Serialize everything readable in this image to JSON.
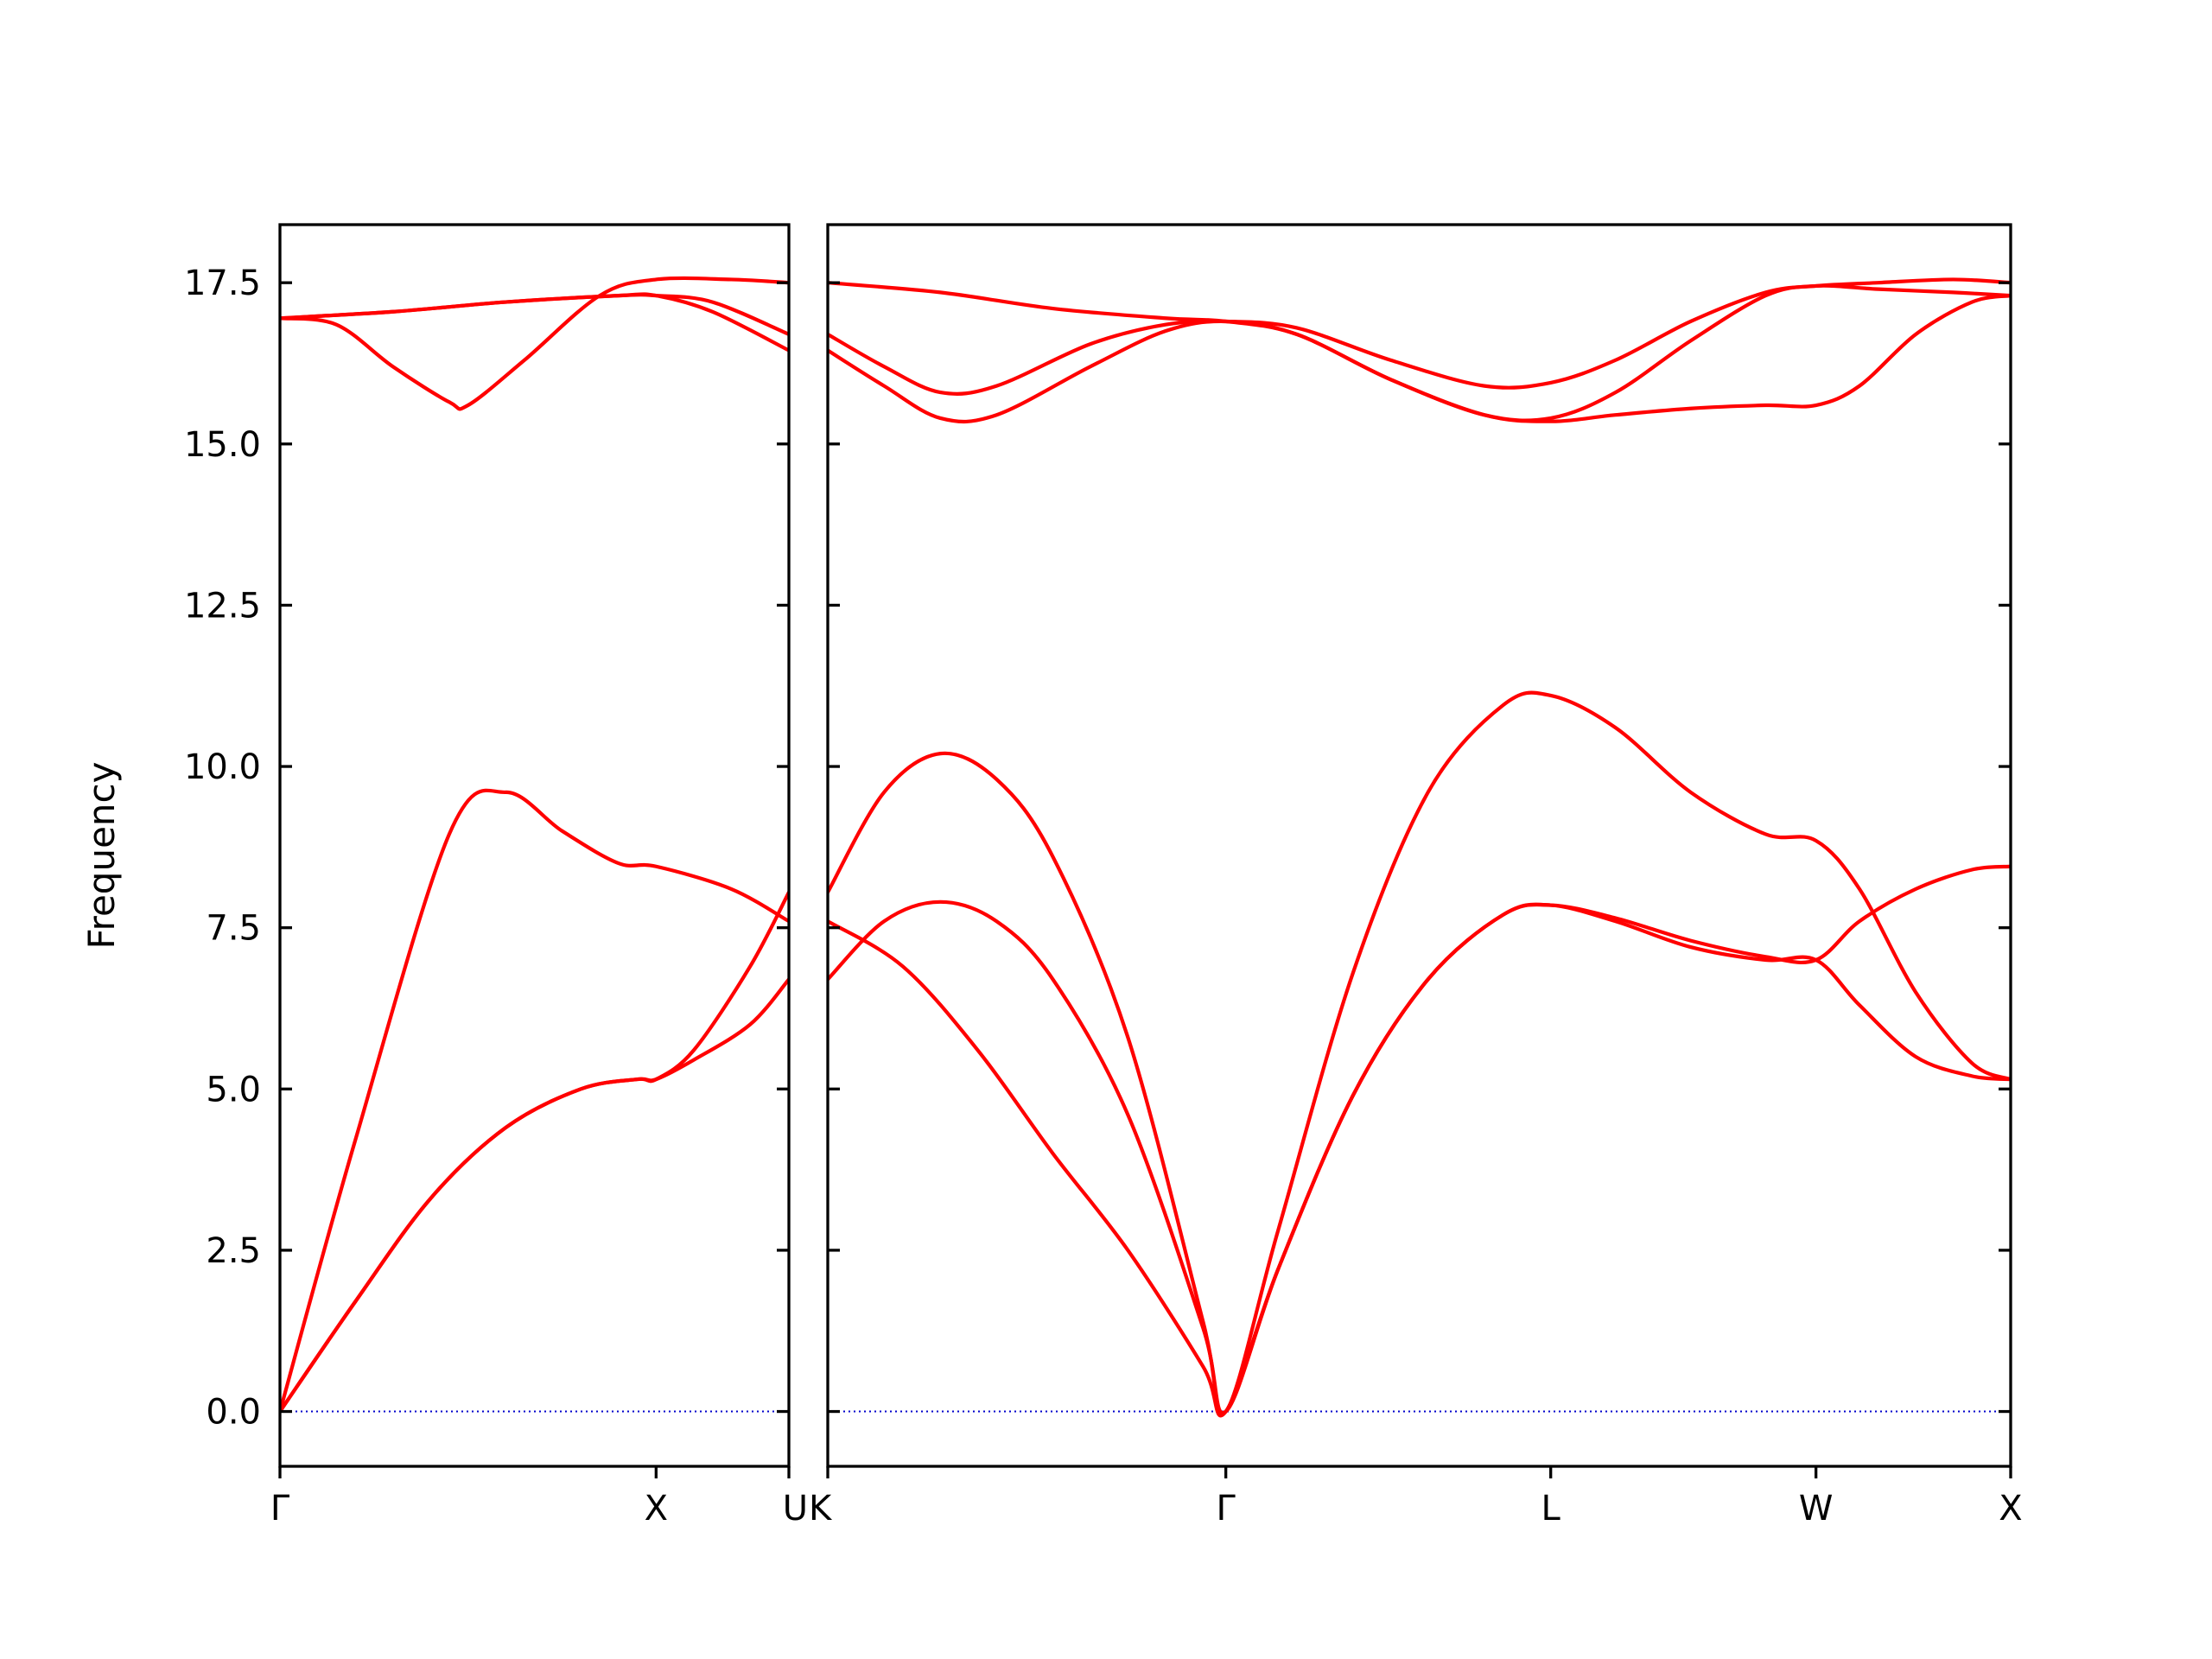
{
  "chart_data": {
    "type": "line",
    "ylabel": "Frequency",
    "ylim": [
      -0.85,
      18.4
    ],
    "yticks": [
      "0.0",
      "2.5",
      "5.0",
      "7.5",
      "10.0",
      "12.5",
      "15.0",
      "17.5"
    ],
    "colors": {
      "bands": "#ff0000",
      "zero_line": "#0000cc",
      "axes": "#000000"
    },
    "panels": [
      {
        "segment": "Γ–X–U",
        "xlim": [
          0,
          1.353
        ],
        "xticks": [
          {
            "x": 0,
            "label": "Γ"
          },
          {
            "x": 1.0,
            "label": "X"
          },
          {
            "x": 1.353,
            "label": "U"
          }
        ],
        "series": [
          {
            "points": [
              [
                0,
                0
              ],
              [
                0.2,
                4.2
              ],
              [
                0.45,
                8.95
              ],
              [
                0.6,
                9.6
              ],
              [
                0.75,
                9.0
              ],
              [
                0.9,
                8.5
              ],
              [
                1.0,
                8.45
              ],
              [
                1.2,
                8.1
              ],
              [
                1.353,
                7.6
              ]
            ]
          },
          {
            "points": [
              [
                0,
                0
              ],
              [
                0.2,
                1.7
              ],
              [
                0.4,
                3.3
              ],
              [
                0.6,
                4.4
              ],
              [
                0.8,
                5.0
              ],
              [
                0.95,
                5.15
              ],
              [
                1.0,
                5.15
              ],
              [
                1.1,
                5.6
              ],
              [
                1.25,
                6.9
              ],
              [
                1.353,
                8.05
              ]
            ]
          },
          {
            "points": [
              [
                0,
                0
              ],
              [
                0.2,
                1.7
              ],
              [
                0.4,
                3.3
              ],
              [
                0.6,
                4.4
              ],
              [
                0.8,
                5.0
              ],
              [
                0.95,
                5.15
              ],
              [
                1.0,
                5.15
              ],
              [
                1.1,
                5.45
              ],
              [
                1.25,
                6.0
              ],
              [
                1.353,
                6.7
              ]
            ]
          },
          {
            "points": [
              [
                0,
                16.95
              ],
              [
                0.15,
                16.85
              ],
              [
                0.3,
                16.2
              ],
              [
                0.45,
                15.65
              ],
              [
                0.5,
                15.6
              ],
              [
                0.65,
                16.3
              ],
              [
                0.85,
                17.3
              ],
              [
                1.0,
                17.55
              ],
              [
                1.2,
                17.55
              ],
              [
                1.353,
                17.5
              ]
            ]
          },
          {
            "points": [
              [
                0,
                16.95
              ],
              [
                0.3,
                17.05
              ],
              [
                0.6,
                17.2
              ],
              [
                0.9,
                17.3
              ],
              [
                1.0,
                17.3
              ],
              [
                1.15,
                17.2
              ],
              [
                1.353,
                16.7
              ]
            ]
          },
          {
            "points": [
              [
                0,
                16.95
              ],
              [
                0.3,
                17.05
              ],
              [
                0.6,
                17.2
              ],
              [
                0.9,
                17.3
              ],
              [
                1.0,
                17.3
              ],
              [
                1.15,
                17.05
              ],
              [
                1.353,
                16.45
              ]
            ]
          }
        ],
        "zero_line": [
          [
            0,
            0
          ],
          [
            1.353,
            0
          ]
        ]
      },
      {
        "segment": "K–Γ–L–W–X",
        "xlim": [
          0,
          3.153
        ],
        "xticks": [
          {
            "x": 0,
            "label": "K"
          },
          {
            "x": 1.061,
            "label": "Γ"
          },
          {
            "x": 1.927,
            "label": "L"
          },
          {
            "x": 2.634,
            "label": "W"
          },
          {
            "x": 3.153,
            "label": "X"
          }
        ],
        "series": [
          {
            "points": [
              [
                0,
                8.05
              ],
              [
                0.15,
                9.6
              ],
              [
                0.3,
                10.2
              ],
              [
                0.45,
                9.8
              ],
              [
                0.6,
                8.6
              ],
              [
                0.8,
                5.8
              ],
              [
                1.0,
                1.4
              ],
              [
                1.061,
                0
              ],
              [
                1.2,
                2.8
              ],
              [
                1.4,
                6.8
              ],
              [
                1.6,
                9.6
              ],
              [
                1.8,
                10.95
              ],
              [
                1.927,
                11.1
              ],
              [
                2.1,
                10.6
              ],
              [
                2.3,
                9.6
              ],
              [
                2.5,
                8.95
              ],
              [
                2.634,
                8.85
              ],
              [
                2.75,
                8.1
              ],
              [
                2.9,
                6.5
              ],
              [
                3.05,
                5.4
              ],
              [
                3.153,
                5.15
              ]
            ]
          },
          {
            "points": [
              [
                0,
                6.7
              ],
              [
                0.15,
                7.6
              ],
              [
                0.3,
                7.9
              ],
              [
                0.45,
                7.6
              ],
              [
                0.6,
                6.7
              ],
              [
                0.8,
                4.6
              ],
              [
                1.0,
                1.3
              ],
              [
                1.061,
                0
              ],
              [
                1.2,
                2.2
              ],
              [
                1.4,
                4.9
              ],
              [
                1.6,
                6.7
              ],
              [
                1.8,
                7.7
              ],
              [
                1.927,
                7.85
              ],
              [
                2.1,
                7.65
              ],
              [
                2.3,
                7.3
              ],
              [
                2.5,
                7.05
              ],
              [
                2.634,
                7.0
              ],
              [
                2.75,
                7.6
              ],
              [
                2.9,
                8.1
              ],
              [
                3.05,
                8.4
              ],
              [
                3.153,
                8.45
              ]
            ]
          },
          {
            "points": [
              [
                0,
                7.6
              ],
              [
                0.2,
                6.9
              ],
              [
                0.4,
                5.6
              ],
              [
                0.6,
                4.0
              ],
              [
                0.8,
                2.5
              ],
              [
                1.0,
                0.7
              ],
              [
                1.061,
                0
              ],
              [
                1.2,
                2.2
              ],
              [
                1.4,
                4.9
              ],
              [
                1.6,
                6.7
              ],
              [
                1.8,
                7.7
              ],
              [
                1.927,
                7.85
              ],
              [
                2.1,
                7.6
              ],
              [
                2.3,
                7.2
              ],
              [
                2.5,
                7.0
              ],
              [
                2.634,
                7.0
              ],
              [
                2.75,
                6.3
              ],
              [
                2.9,
                5.5
              ],
              [
                3.05,
                5.2
              ],
              [
                3.153,
                5.15
              ]
            ]
          },
          {
            "points": [
              [
                0,
                16.7
              ],
              [
                0.15,
                16.2
              ],
              [
                0.3,
                15.8
              ],
              [
                0.45,
                15.9
              ],
              [
                0.7,
                16.55
              ],
              [
                0.9,
                16.85
              ],
              [
                1.061,
                16.9
              ],
              [
                1.25,
                16.8
              ],
              [
                1.5,
                16.3
              ],
              [
                1.75,
                15.9
              ],
              [
                1.927,
                15.95
              ],
              [
                2.1,
                16.3
              ],
              [
                2.3,
                16.9
              ],
              [
                2.5,
                17.35
              ],
              [
                2.634,
                17.45
              ],
              [
                2.8,
                17.5
              ],
              [
                3.0,
                17.55
              ],
              [
                3.153,
                17.5
              ]
            ]
          },
          {
            "points": [
              [
                0,
                16.45
              ],
              [
                0.15,
                15.9
              ],
              [
                0.3,
                15.4
              ],
              [
                0.45,
                15.45
              ],
              [
                0.7,
                16.2
              ],
              [
                0.9,
                16.75
              ],
              [
                1.061,
                16.9
              ],
              [
                1.25,
                16.7
              ],
              [
                1.5,
                16.0
              ],
              [
                1.75,
                15.45
              ],
              [
                1.927,
                15.4
              ],
              [
                2.1,
                15.8
              ],
              [
                2.3,
                16.6
              ],
              [
                2.5,
                17.3
              ],
              [
                2.634,
                17.45
              ],
              [
                2.8,
                17.4
              ],
              [
                3.0,
                17.35
              ],
              [
                3.153,
                17.3
              ]
            ]
          },
          {
            "points": [
              [
                0,
                17.5
              ],
              [
                0.3,
                17.35
              ],
              [
                0.6,
                17.1
              ],
              [
                0.9,
                16.95
              ],
              [
                1.061,
                16.9
              ],
              [
                1.25,
                16.7
              ],
              [
                1.5,
                16.0
              ],
              [
                1.75,
                15.45
              ],
              [
                1.927,
                15.35
              ],
              [
                2.1,
                15.45
              ],
              [
                2.3,
                15.55
              ],
              [
                2.5,
                15.6
              ],
              [
                2.634,
                15.6
              ],
              [
                2.75,
                15.9
              ],
              [
                2.9,
                16.7
              ],
              [
                3.05,
                17.2
              ],
              [
                3.153,
                17.3
              ]
            ]
          }
        ],
        "zero_line": [
          [
            0,
            0
          ],
          [
            3.153,
            0
          ]
        ]
      }
    ]
  }
}
